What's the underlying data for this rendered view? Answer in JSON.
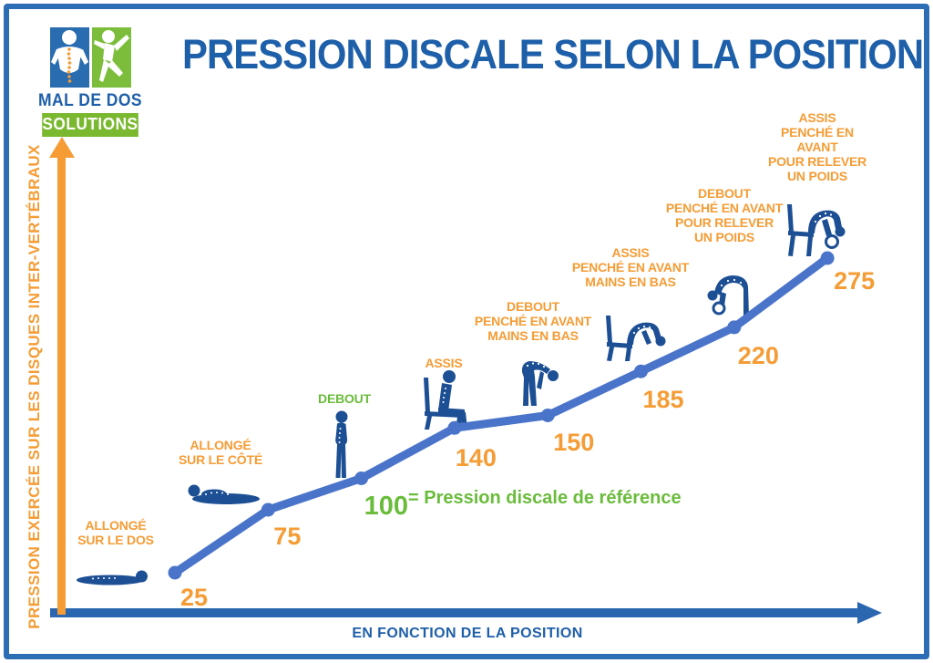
{
  "logo": {
    "brand": "MAL DE DOS",
    "sub": "SOLUTIONS"
  },
  "palette": {
    "title_blue": "#1e5fa9",
    "border_blue": "#2d6db5",
    "axis_blue": "#2a67b0",
    "line_blue": "#4a74c9",
    "figure_navy": "#1d4f94",
    "orange": "#f59c35",
    "green": "#6abc3b",
    "logo_green": "#7ab82f",
    "logo_blue": "#2a6cb0"
  },
  "chart_data": {
    "type": "line",
    "title": "PRESSION DISCALE SELON LA POSITION",
    "ylabel": "PRESSION EXERCÉE SUR LES DISQUES INTER-VERTÉBRAUX",
    "xlabel": "EN FONCTION DE LA POSITION",
    "reference_note": "= Pression discale de référence",
    "reference_value": 100,
    "grid": false,
    "legend_position": "none",
    "points": [
      {
        "label": "ALLONGÉ\nSUR LE DOS",
        "value": 25,
        "emphasis": "default",
        "icon": "lying-on-back-icon"
      },
      {
        "label": "ALLONGÉ\nSUR LE CÔTÉ",
        "value": 75,
        "emphasis": "default",
        "icon": "lying-on-side-icon"
      },
      {
        "label": "DEBOUT",
        "value": 100,
        "emphasis": "reference",
        "icon": "standing-icon"
      },
      {
        "label": "ASSIS",
        "value": 140,
        "emphasis": "default",
        "icon": "sitting-icon"
      },
      {
        "label": "DEBOUT\nPENCHÉ EN AVANT\nMAINS EN BAS",
        "value": 150,
        "emphasis": "default",
        "icon": "standing-bent-forward-icon"
      },
      {
        "label": "ASSIS\nPENCHÉ EN AVANT\nMAINS EN BAS",
        "value": 185,
        "emphasis": "default",
        "icon": "sitting-bent-forward-icon"
      },
      {
        "label": "DEBOUT\nPENCHÉ EN AVANT\nPOUR RELEVER\nUN POIDS",
        "value": 220,
        "emphasis": "default",
        "icon": "standing-lifting-weight-icon"
      },
      {
        "label": "ASSIS\nPENCHÉ EN AVANT\nPOUR RELEVER\nUN POIDS",
        "value": 275,
        "emphasis": "default",
        "icon": "sitting-lifting-weight-icon"
      }
    ]
  }
}
